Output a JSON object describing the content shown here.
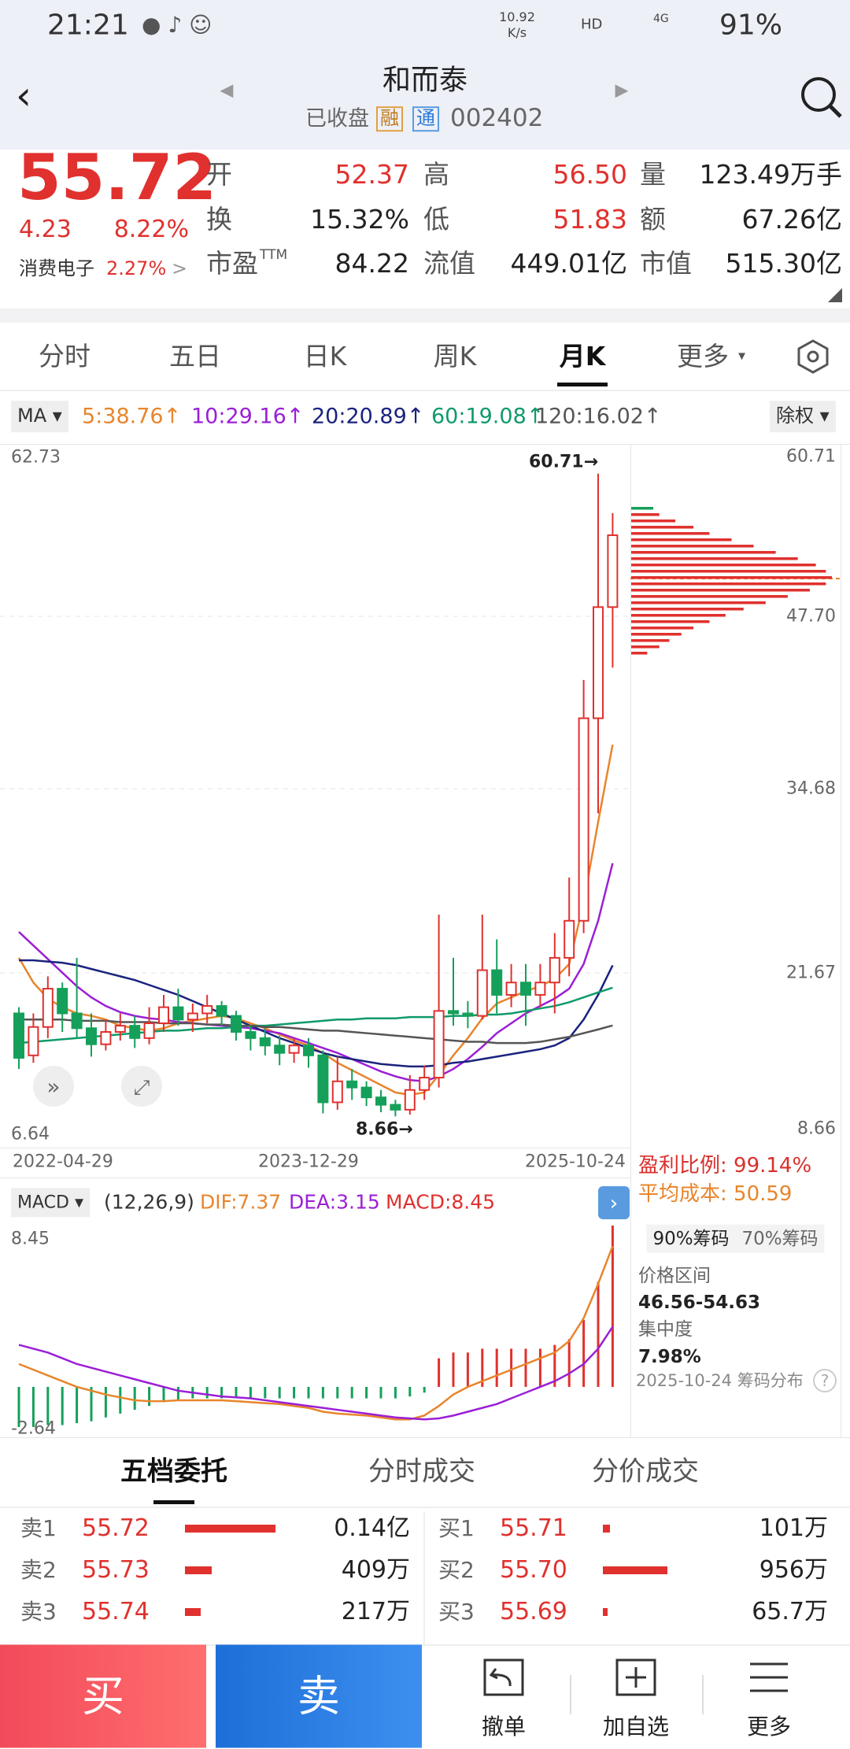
{
  "status_bar": {
    "time": "21:21",
    "speed": "10.92",
    "speed_unit": "K/s",
    "hd": "HD",
    "network": "4G",
    "battery": "91%"
  },
  "header": {
    "title": "和而泰",
    "status": "已收盘",
    "badges": [
      "融",
      "通"
    ],
    "code": "002402"
  },
  "quote": {
    "price": "55.72",
    "change": "4.23",
    "change_pct": "8.22%",
    "sector": "消费电子",
    "sector_pct": "2.27%",
    "up_color": "#e0312e",
    "fields": [
      {
        "label": "开",
        "value": "52.37",
        "color": "#e0312e"
      },
      {
        "label": "高",
        "value": "56.50",
        "color": "#e0312e"
      },
      {
        "label": "量",
        "value": "123.49万手",
        "color": "#222222"
      },
      {
        "label": "换",
        "value": "15.32%",
        "color": "#222222"
      },
      {
        "label": "低",
        "value": "51.83",
        "color": "#e0312e"
      },
      {
        "label": "额",
        "value": "67.26亿",
        "color": "#222222"
      },
      {
        "label": "市盈",
        "sup": "TTM",
        "value": "84.22",
        "color": "#222222"
      },
      {
        "label": "流值",
        "value": "449.01亿",
        "color": "#222222"
      },
      {
        "label": "市值",
        "value": "515.30亿",
        "color": "#222222"
      }
    ]
  },
  "tabs": {
    "items": [
      "分时",
      "五日",
      "日K",
      "周K",
      "月K",
      "更多"
    ],
    "active": 4
  },
  "indicator": {
    "label": "MA",
    "adjust": "除权"
  },
  "kline": {
    "ylim": [
      6.64,
      62.73
    ],
    "right_labels": [
      "60.71",
      "47.70",
      "34.68",
      "21.67",
      "8.66"
    ],
    "high_marker": "60.71→",
    "low_marker": "8.66→",
    "dates": [
      "2022-04-29",
      "2023-12-29",
      "2025-10-24"
    ],
    "up_color": "#e0312e",
    "down_color": "#14a05a",
    "candles": [
      [
        17.0,
        13.4,
        17.5,
        12.5
      ],
      [
        13.6,
        15.9,
        17.0,
        13.0
      ],
      [
        15.9,
        19.0,
        20.0,
        15.0
      ],
      [
        19.0,
        17.0,
        19.5,
        15.5
      ],
      [
        17.0,
        15.8,
        21.5,
        15.0
      ],
      [
        15.8,
        14.5,
        17.0,
        13.5
      ],
      [
        14.5,
        15.5,
        16.5,
        14.0
      ],
      [
        15.5,
        16.0,
        17.0,
        14.8
      ],
      [
        16.0,
        15.0,
        16.8,
        14.2
      ],
      [
        15.0,
        16.2,
        17.5,
        14.5
      ],
      [
        16.2,
        17.5,
        18.5,
        15.5
      ],
      [
        17.5,
        16.5,
        19.0,
        16.0
      ],
      [
        16.5,
        17.0,
        17.8,
        15.5
      ],
      [
        17.0,
        17.6,
        18.5,
        16.2
      ],
      [
        17.6,
        16.8,
        18.0,
        16.0
      ],
      [
        16.8,
        15.5,
        17.2,
        14.8
      ],
      [
        15.5,
        15.0,
        16.0,
        14.0
      ],
      [
        15.0,
        14.4,
        15.8,
        13.6
      ],
      [
        14.4,
        13.8,
        15.2,
        12.8
      ],
      [
        13.8,
        14.4,
        15.0,
        13.0
      ],
      [
        14.4,
        13.6,
        15.0,
        12.6
      ],
      [
        13.6,
        9.8,
        14.0,
        8.9
      ],
      [
        9.8,
        11.5,
        13.5,
        9.2
      ],
      [
        11.5,
        11.0,
        12.5,
        10.0
      ],
      [
        11.0,
        10.2,
        11.5,
        9.5
      ],
      [
        10.2,
        9.6,
        10.8,
        9.0
      ],
      [
        9.6,
        9.2,
        10.0,
        8.66
      ],
      [
        9.2,
        10.8,
        12.0,
        8.8
      ],
      [
        10.8,
        11.8,
        12.8,
        10.0
      ],
      [
        11.8,
        17.2,
        25.0,
        11.0
      ],
      [
        17.2,
        17.0,
        21.5,
        16.0
      ],
      [
        17.0,
        16.8,
        18.0,
        15.8
      ],
      [
        16.8,
        20.5,
        25.0,
        16.5
      ],
      [
        20.5,
        18.5,
        23.0,
        17.0
      ],
      [
        18.5,
        19.5,
        21.0,
        17.5
      ],
      [
        19.5,
        18.5,
        21.0,
        16.0
      ],
      [
        18.5,
        19.5,
        21.0,
        17.5
      ],
      [
        19.5,
        21.5,
        23.5,
        17.0
      ],
      [
        21.5,
        24.5,
        28.0,
        20.0
      ],
      [
        24.5,
        40.9,
        44.0,
        23.5
      ],
      [
        40.9,
        49.9,
        60.71,
        33.2
      ],
      [
        49.9,
        55.72,
        57.5,
        45.0
      ]
    ],
    "ma": [
      {
        "label": "5:38.76↑",
        "color": "#e8852c",
        "values": [
          21.5,
          19.5,
          18.2,
          17.5,
          17.0,
          16.8,
          16.5,
          16.0,
          15.8,
          15.6,
          15.8,
          16.2,
          16.4,
          16.6,
          16.8,
          16.6,
          16.2,
          15.8,
          15.3,
          14.8,
          14.4,
          13.8,
          13.0,
          12.4,
          11.8,
          11.2,
          10.6,
          10.4,
          10.6,
          12.0,
          13.6,
          15.0,
          16.6,
          17.8,
          18.3,
          18.8,
          19.2,
          19.8,
          21.0,
          26.0,
          32.5,
          38.76
        ]
      },
      {
        "label": "10:29.16↑",
        "color": "#9b1fd6",
        "values": [
          23.6,
          22.5,
          21.4,
          20.3,
          19.2,
          18.3,
          17.6,
          17.1,
          16.8,
          16.6,
          16.5,
          16.3,
          16.2,
          16.1,
          16.0,
          15.9,
          15.8,
          15.6,
          15.4,
          15.0,
          14.6,
          14.2,
          13.8,
          13.3,
          12.8,
          12.3,
          11.9,
          11.6,
          11.5,
          11.9,
          12.5,
          13.3,
          14.3,
          15.4,
          16.2,
          17.0,
          17.6,
          18.2,
          19.0,
          21.0,
          24.5,
          29.16
        ]
      },
      {
        "label": "20:20.89↑",
        "color": "#1a237e",
        "values": [
          21.3,
          21.3,
          21.2,
          21.1,
          20.9,
          20.6,
          20.3,
          20.0,
          19.7,
          19.3,
          18.9,
          18.5,
          18.0,
          17.5,
          17.0,
          16.5,
          16.0,
          15.5,
          15.0,
          14.6,
          14.2,
          13.8,
          13.5,
          13.3,
          13.1,
          12.9,
          12.8,
          12.7,
          12.7,
          12.8,
          13.0,
          13.1,
          13.3,
          13.5,
          13.7,
          13.9,
          14.1,
          14.4,
          15.0,
          16.5,
          18.5,
          20.89
        ]
      },
      {
        "label": "60:19.08↑",
        "color": "#0f9a6b",
        "values": [
          14.6,
          14.7,
          14.8,
          14.9,
          15.0,
          15.1,
          15.2,
          15.3,
          15.4,
          15.5,
          15.6,
          15.6,
          15.7,
          15.8,
          15.8,
          15.9,
          16.0,
          16.0,
          16.1,
          16.2,
          16.3,
          16.4,
          16.5,
          16.5,
          16.6,
          16.6,
          16.6,
          16.7,
          16.7,
          16.7,
          16.8,
          16.8,
          16.9,
          16.9,
          17.0,
          17.2,
          17.4,
          17.6,
          17.9,
          18.3,
          18.7,
          19.08
        ]
      },
      {
        "label": "120:16.02↑",
        "color": "#555555",
        "values": [
          16.5,
          16.5,
          16.5,
          16.5,
          16.4,
          16.4,
          16.4,
          16.3,
          16.3,
          16.3,
          16.2,
          16.2,
          16.2,
          16.1,
          16.1,
          16.0,
          16.0,
          15.9,
          15.9,
          15.8,
          15.7,
          15.6,
          15.6,
          15.5,
          15.4,
          15.3,
          15.2,
          15.1,
          15.0,
          14.9,
          14.8,
          14.7,
          14.7,
          14.6,
          14.6,
          14.6,
          14.7,
          14.9,
          15.1,
          15.4,
          15.7,
          16.02
        ]
      }
    ]
  },
  "macd": {
    "label": "MACD",
    "params": "(12,26,9)",
    "dif_label": "DIF:7.37",
    "dea_label": "DEA:3.15",
    "macd_label": "MACD:8.45",
    "ylim": [
      -2.64,
      8.45
    ],
    "up_color": "#e0312e",
    "down_color": "#14a05a",
    "dif_color": "#e8852c",
    "dea_color": "#9b1fd6",
    "hist": [
      -2.1,
      -2.1,
      -2.0,
      -2.0,
      -1.9,
      -1.8,
      -1.6,
      -1.4,
      -1.2,
      -1.0,
      -0.8,
      -0.7,
      -0.6,
      -0.6,
      -0.6,
      -0.6,
      -0.6,
      -0.6,
      -0.6,
      -0.6,
      -0.6,
      -0.6,
      -0.6,
      -0.6,
      -0.6,
      -0.6,
      -0.6,
      -0.5,
      -0.3,
      1.5,
      1.8,
      1.8,
      2.0,
      2.0,
      2.0,
      2.0,
      2.0,
      2.2,
      2.5,
      3.5,
      5.5,
      8.45
    ],
    "dif": [
      1.2,
      0.9,
      0.6,
      0.3,
      0.0,
      -0.2,
      -0.4,
      -0.55,
      -0.7,
      -0.75,
      -0.75,
      -0.7,
      -0.7,
      -0.7,
      -0.7,
      -0.75,
      -0.8,
      -0.85,
      -0.9,
      -1.0,
      -1.1,
      -1.3,
      -1.4,
      -1.45,
      -1.5,
      -1.6,
      -1.7,
      -1.7,
      -1.5,
      -1.0,
      -0.4,
      0.0,
      0.3,
      0.6,
      0.9,
      1.2,
      1.5,
      1.8,
      2.4,
      3.6,
      5.4,
      7.37
    ],
    "dea": [
      2.2,
      2.0,
      1.8,
      1.5,
      1.2,
      1.0,
      0.8,
      0.6,
      0.4,
      0.2,
      0.0,
      -0.2,
      -0.3,
      -0.4,
      -0.5,
      -0.55,
      -0.6,
      -0.7,
      -0.8,
      -0.9,
      -1.0,
      -1.1,
      -1.2,
      -1.3,
      -1.4,
      -1.5,
      -1.6,
      -1.65,
      -1.7,
      -1.65,
      -1.5,
      -1.3,
      -1.1,
      -0.9,
      -0.6,
      -0.3,
      0.0,
      0.3,
      0.7,
      1.2,
      2.0,
      3.15
    ]
  },
  "chips": {
    "profit": "盈利比例: 99.14%",
    "avg_cost": "平均成本: 50.59",
    "buttons": [
      "90%筹码",
      "70%筹码"
    ],
    "range_label": "价格区间",
    "range": "46.56-54.63",
    "conc_label": "集中度",
    "conc": "7.98%",
    "footer": "2025-10-24 筹码分布",
    "bars": [
      11,
      14,
      22,
      31,
      39,
      50,
      61,
      72,
      83,
      92,
      97,
      100,
      97,
      89,
      78,
      67,
      56,
      47,
      39,
      31,
      25,
      19,
      14,
      8
    ]
  },
  "book": {
    "tabs": [
      "五档委托",
      "分时成交",
      "分价成交"
    ],
    "active": 0,
    "sell": [
      {
        "label": "卖1",
        "price": "55.72",
        "volume": "0.14亿"
      },
      {
        "label": "卖2",
        "price": "55.73",
        "volume": "409万"
      },
      {
        "label": "卖3",
        "price": "55.74",
        "volume": "217万"
      }
    ],
    "buy": [
      {
        "label": "买1",
        "price": "55.71",
        "volume": "101万"
      },
      {
        "label": "买2",
        "price": "55.70",
        "volume": "956万"
      },
      {
        "label": "买3",
        "price": "55.69",
        "volume": "65.7万"
      }
    ]
  },
  "actions": {
    "buy": "买",
    "sell": "卖",
    "cancel": "撤单",
    "watch": "加自选",
    "more": "更多"
  }
}
